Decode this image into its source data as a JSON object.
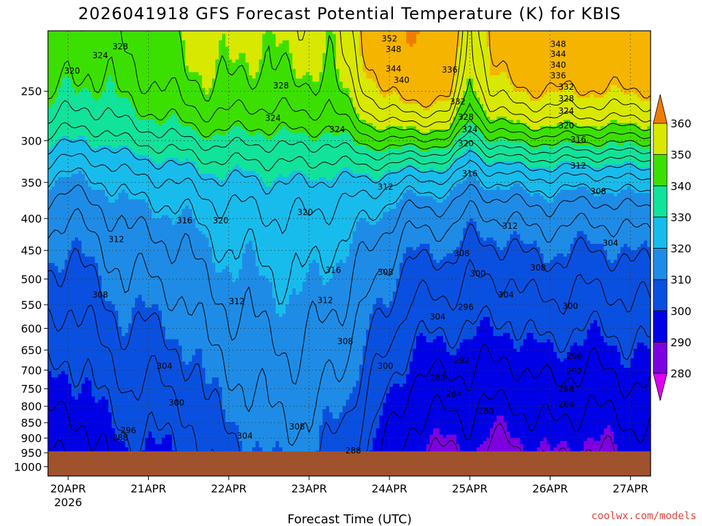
{
  "chart_data": {
    "type": "contour",
    "title": "2026041918 GFS Forecast Potential Temperature (K) for KBIS",
    "xlabel": "Forecast Time (UTC)",
    "y_ticks": [
      "250",
      "300",
      "350",
      "400",
      "450",
      "500",
      "550",
      "600",
      "650",
      "700",
      "750",
      "800",
      "850",
      "900",
      "950",
      "1000"
    ],
    "y_range_hpa": [
      200,
      1035
    ],
    "y_scale": "log",
    "x_ticks": [
      "20APR",
      "21APR",
      "22APR",
      "23APR",
      "24APR",
      "25APR",
      "26APR",
      "27APR"
    ],
    "x_year": "2026",
    "x_range_days": [
      19.75,
      27.25
    ],
    "grid": true,
    "colorbar": {
      "ticks": [
        "280",
        "290",
        "300",
        "310",
        "320",
        "330",
        "340",
        "350",
        "360"
      ],
      "values": [
        280,
        290,
        300,
        310,
        320,
        330,
        340,
        350,
        360
      ],
      "colors": [
        "#de00f0",
        "#7e00e0",
        "#0000e6",
        "#0a50e0",
        "#1e8ce6",
        "#18bcec",
        "#12e39a",
        "#3ce000",
        "#d8e800",
        "#f5b400",
        "#f07c00"
      ]
    },
    "ground_color": "#a0522d",
    "columns": [
      {
        "day": 19.75,
        "theta_1000": 288,
        "lapse": 22,
        "upper": 328
      },
      {
        "day": 20.0,
        "theta_1000": 287,
        "lapse": 22,
        "upper": 326
      },
      {
        "day": 20.25,
        "theta_1000": 289,
        "lapse": 21,
        "upper": 325
      },
      {
        "day": 20.5,
        "theta_1000": 292,
        "lapse": 20,
        "upper": 326
      },
      {
        "day": 20.75,
        "theta_1000": 294,
        "lapse": 20,
        "upper": 328
      },
      {
        "day": 21.0,
        "theta_1000": 293,
        "lapse": 21,
        "upper": 330
      },
      {
        "day": 21.25,
        "theta_1000": 294,
        "lapse": 21,
        "upper": 331
      },
      {
        "day": 21.5,
        "theta_1000": 296,
        "lapse": 20,
        "upper": 333
      },
      {
        "day": 21.75,
        "theta_1000": 300,
        "lapse": 18,
        "upper": 335
      },
      {
        "day": 22.0,
        "theta_1000": 302,
        "lapse": 17,
        "upper": 334
      },
      {
        "day": 22.25,
        "theta_1000": 303,
        "lapse": 16,
        "upper": 333
      },
      {
        "day": 22.5,
        "theta_1000": 305,
        "lapse": 15,
        "upper": 333
      },
      {
        "day": 22.75,
        "theta_1000": 306,
        "lapse": 14,
        "upper": 334
      },
      {
        "day": 23.0,
        "theta_1000": 305,
        "lapse": 15,
        "upper": 334
      },
      {
        "day": 23.25,
        "theta_1000": 303,
        "lapse": 16,
        "upper": 333
      },
      {
        "day": 23.5,
        "theta_1000": 300,
        "lapse": 18,
        "upper": 338
      },
      {
        "day": 23.75,
        "theta_1000": 294,
        "lapse": 22,
        "upper": 345
      },
      {
        "day": 24.0,
        "theta_1000": 289,
        "lapse": 24,
        "upper": 350
      },
      {
        "day": 24.25,
        "theta_1000": 284,
        "lapse": 26,
        "upper": 352
      },
      {
        "day": 24.5,
        "theta_1000": 283,
        "lapse": 27,
        "upper": 352
      },
      {
        "day": 24.75,
        "theta_1000": 282,
        "lapse": 28,
        "upper": 351
      },
      {
        "day": 25.0,
        "theta_1000": 284,
        "lapse": 23,
        "upper": 333
      },
      {
        "day": 25.25,
        "theta_1000": 282,
        "lapse": 26,
        "upper": 345
      },
      {
        "day": 25.5,
        "theta_1000": 281,
        "lapse": 27,
        "upper": 348
      },
      {
        "day": 25.75,
        "theta_1000": 283,
        "lapse": 27,
        "upper": 349
      },
      {
        "day": 26.0,
        "theta_1000": 284,
        "lapse": 26,
        "upper": 349
      },
      {
        "day": 26.25,
        "theta_1000": 283,
        "lapse": 26,
        "upper": 349
      },
      {
        "day": 26.5,
        "theta_1000": 282,
        "lapse": 27,
        "upper": 349
      },
      {
        "day": 26.75,
        "theta_1000": 283,
        "lapse": 26,
        "upper": 349
      },
      {
        "day": 27.0,
        "theta_1000": 284,
        "lapse": 26,
        "upper": 349
      },
      {
        "day": 27.25,
        "theta_1000": 284,
        "lapse": 26,
        "upper": 349
      }
    ],
    "contour_labels": [
      {
        "text": "328",
        "day": 20.65,
        "hpa": 212
      },
      {
        "text": "324",
        "day": 20.4,
        "hpa": 219
      },
      {
        "text": "320",
        "day": 20.05,
        "hpa": 232
      },
      {
        "text": "328",
        "day": 22.65,
        "hpa": 245
      },
      {
        "text": "324",
        "day": 22.55,
        "hpa": 276
      },
      {
        "text": "324",
        "day": 23.35,
        "hpa": 288
      },
      {
        "text": "320",
        "day": 21.9,
        "hpa": 403
      },
      {
        "text": "316",
        "day": 21.45,
        "hpa": 403
      },
      {
        "text": "320",
        "day": 22.95,
        "hpa": 391
      },
      {
        "text": "312",
        "day": 20.6,
        "hpa": 432
      },
      {
        "text": "316",
        "day": 23.3,
        "hpa": 484
      },
      {
        "text": "312",
        "day": 23.2,
        "hpa": 541
      },
      {
        "text": "312",
        "day": 22.1,
        "hpa": 543
      },
      {
        "text": "308",
        "day": 20.4,
        "hpa": 530
      },
      {
        "text": "308",
        "day": 23.45,
        "hpa": 630
      },
      {
        "text": "304",
        "day": 21.2,
        "hpa": 690
      },
      {
        "text": "300",
        "day": 21.35,
        "hpa": 790
      },
      {
        "text": "304",
        "day": 22.2,
        "hpa": 893
      },
      {
        "text": "308",
        "day": 22.85,
        "hpa": 863
      },
      {
        "text": "296",
        "day": 20.75,
        "hpa": 875
      },
      {
        "text": "288",
        "day": 20.65,
        "hpa": 898
      },
      {
        "text": "288",
        "day": 23.55,
        "hpa": 943
      },
      {
        "text": "352",
        "day": 24.0,
        "hpa": 206
      },
      {
        "text": "348",
        "day": 24.05,
        "hpa": 214
      },
      {
        "text": "344",
        "day": 24.05,
        "hpa": 230
      },
      {
        "text": "340",
        "day": 24.15,
        "hpa": 240
      },
      {
        "text": "336",
        "day": 24.75,
        "hpa": 231
      },
      {
        "text": "332",
        "day": 24.85,
        "hpa": 260
      },
      {
        "text": "328",
        "day": 24.95,
        "hpa": 275
      },
      {
        "text": "324",
        "day": 25.0,
        "hpa": 288
      },
      {
        "text": "320",
        "day": 24.95,
        "hpa": 303
      },
      {
        "text": "316",
        "day": 25.0,
        "hpa": 339
      },
      {
        "text": "312",
        "day": 23.95,
        "hpa": 356
      },
      {
        "text": "312",
        "day": 25.5,
        "hpa": 411
      },
      {
        "text": "308",
        "day": 23.95,
        "hpa": 488
      },
      {
        "text": "308",
        "day": 24.9,
        "hpa": 455
      },
      {
        "text": "300",
        "day": 25.1,
        "hpa": 490
      },
      {
        "text": "304",
        "day": 24.6,
        "hpa": 575
      },
      {
        "text": "296",
        "day": 24.95,
        "hpa": 555
      },
      {
        "text": "300",
        "day": 23.95,
        "hpa": 690
      },
      {
        "text": "292",
        "day": 24.9,
        "hpa": 675
      },
      {
        "text": "288",
        "day": 24.6,
        "hpa": 720
      },
      {
        "text": "284",
        "day": 24.8,
        "hpa": 765
      },
      {
        "text": "280",
        "day": 25.2,
        "hpa": 815
      },
      {
        "text": "304",
        "day": 25.45,
        "hpa": 530
      },
      {
        "text": "308",
        "day": 25.85,
        "hpa": 480
      },
      {
        "text": "300",
        "day": 26.25,
        "hpa": 553
      },
      {
        "text": "296",
        "day": 26.3,
        "hpa": 665
      },
      {
        "text": "292",
        "day": 26.3,
        "hpa": 703
      },
      {
        "text": "288",
        "day": 26.2,
        "hpa": 750
      },
      {
        "text": "284",
        "day": 26.2,
        "hpa": 795
      },
      {
        "text": "304",
        "day": 26.75,
        "hpa": 438
      },
      {
        "text": "308",
        "day": 26.6,
        "hpa": 362
      },
      {
        "text": "312",
        "day": 26.35,
        "hpa": 329
      },
      {
        "text": "316",
        "day": 26.35,
        "hpa": 299
      },
      {
        "text": "320",
        "day": 26.2,
        "hpa": 284
      },
      {
        "text": "324",
        "day": 26.2,
        "hpa": 269
      },
      {
        "text": "328",
        "day": 26.2,
        "hpa": 257
      },
      {
        "text": "332",
        "day": 26.2,
        "hpa": 246
      },
      {
        "text": "336",
        "day": 26.1,
        "hpa": 236
      },
      {
        "text": "340",
        "day": 26.1,
        "hpa": 227
      },
      {
        "text": "344",
        "day": 26.1,
        "hpa": 218
      },
      {
        "text": "348",
        "day": 26.1,
        "hpa": 210
      }
    ]
  },
  "credit": "coolwx.com/models"
}
